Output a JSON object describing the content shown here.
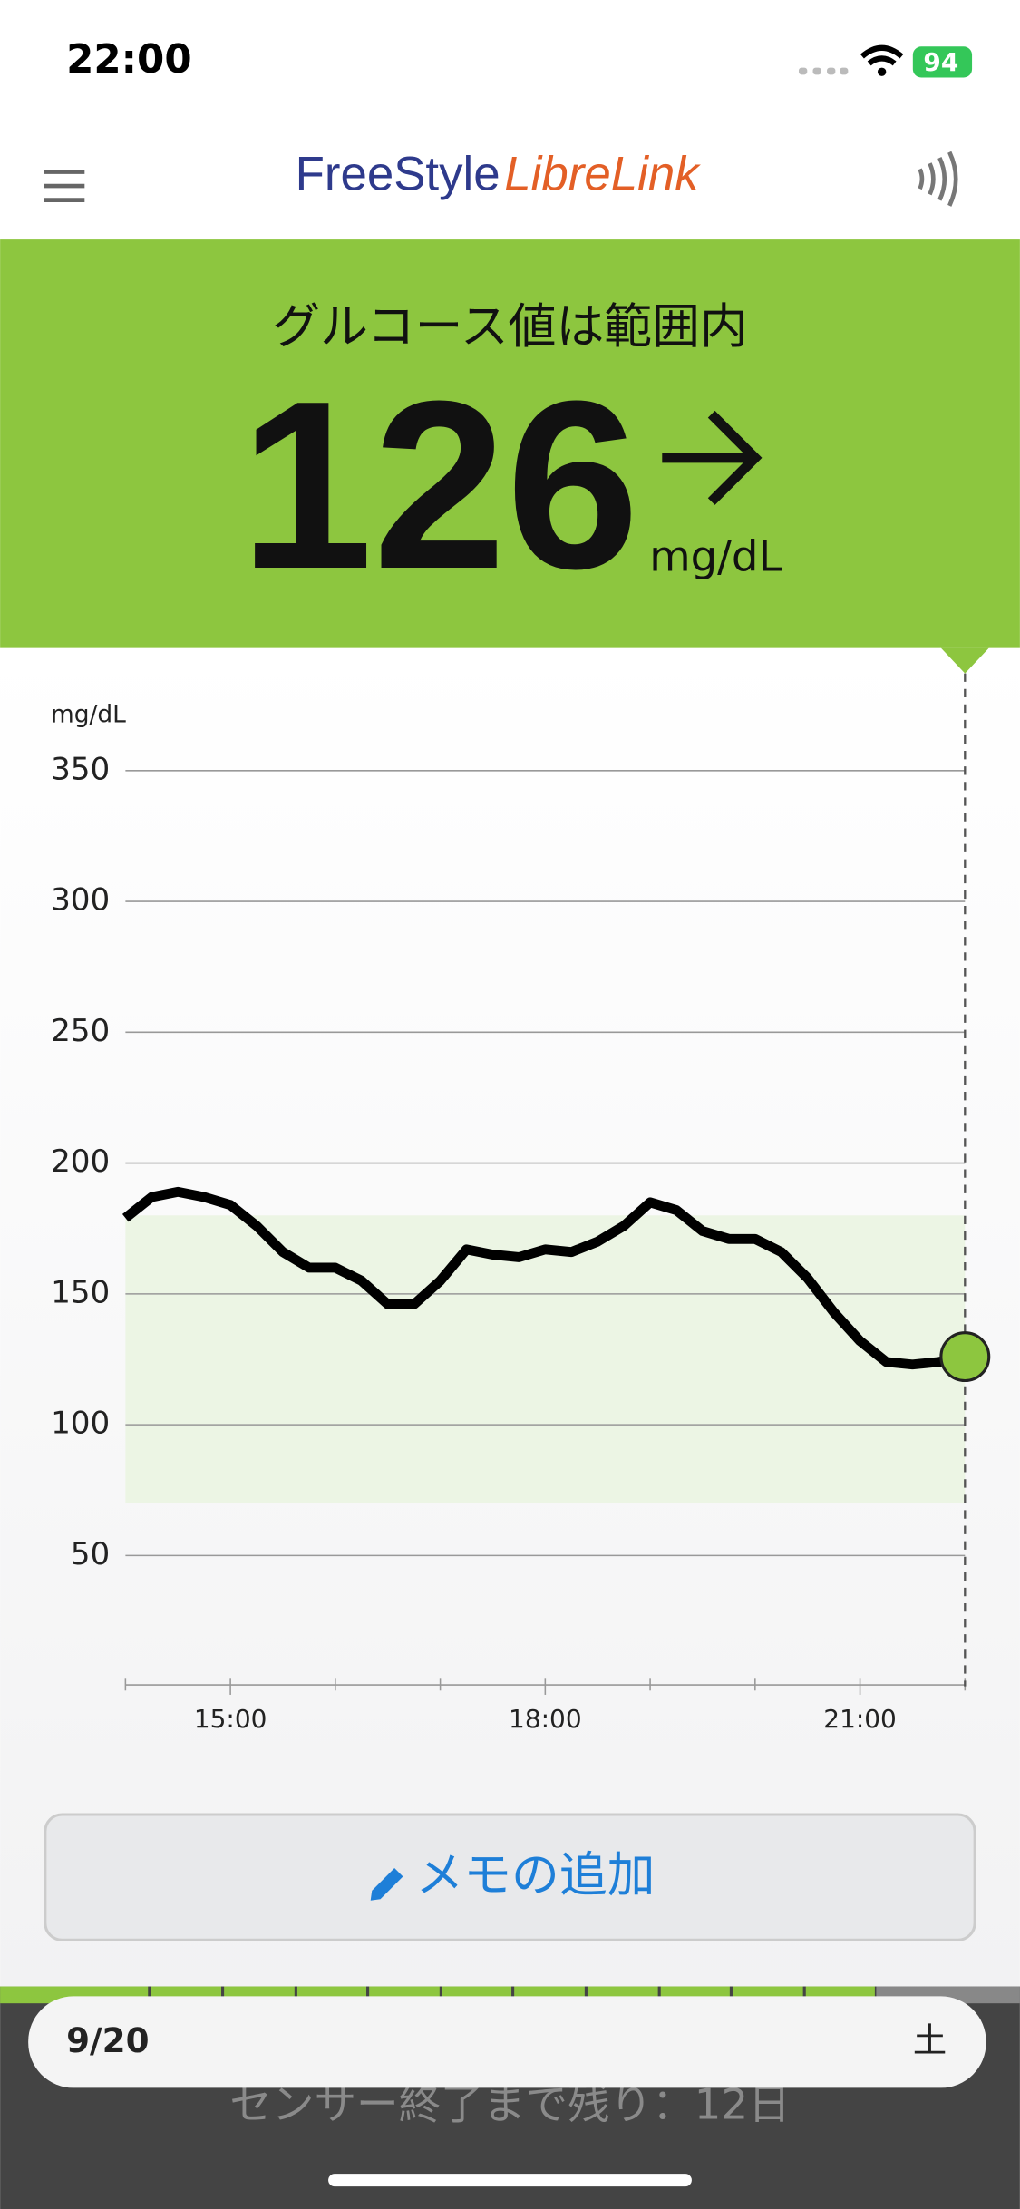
{
  "status_bar": {
    "time": "22:00",
    "battery": "94"
  },
  "header": {
    "brand": "FreeStyle",
    "product": "LibreLink"
  },
  "current": {
    "status": "グルコース値は範囲内",
    "value": 126,
    "unit": "mg/dL"
  },
  "chart_data": {
    "type": "line",
    "y_label": "mg/dL",
    "color": "#000000",
    "x": [
      14,
      14.25,
      14.5,
      14.75,
      15,
      15.25,
      15.5,
      15.75,
      16,
      16.25,
      16.5,
      16.75,
      17,
      17.25,
      17.5,
      17.75,
      18,
      18.25,
      18.5,
      18.75,
      19,
      19.25,
      19.5,
      19.75,
      20,
      20.25,
      20.5,
      20.75,
      21,
      21.25,
      21.5,
      21.75,
      22
    ],
    "values": [
      179,
      187,
      189,
      187,
      184,
      176,
      166,
      160,
      160,
      155,
      146,
      146,
      155,
      167,
      165,
      164,
      167,
      166,
      170,
      176,
      185,
      182,
      174,
      171,
      171,
      166,
      156,
      143,
      132,
      124,
      123,
      124,
      126
    ],
    "marker_color": "#8dc63f",
    "target_range": [
      70,
      180
    ],
    "target_color": "#ecf5e4",
    "xlim": [
      14,
      22
    ],
    "ylim": [
      0,
      350
    ],
    "xticks": [
      {
        "value": 15,
        "label": "15:00"
      },
      {
        "value": 18,
        "label": "18:00"
      },
      {
        "value": 21,
        "label": "21:00"
      }
    ],
    "x_minor_ticks": [
      14,
      16,
      17,
      19,
      20,
      22
    ],
    "yticks": [
      50,
      100,
      150,
      200,
      250,
      300,
      350
    ],
    "grid": true
  },
  "memo_button": "メモの追加",
  "date_bar": {
    "date": "9/20",
    "weekday": "土"
  },
  "sensor": "センサー終了まで残り：12日"
}
